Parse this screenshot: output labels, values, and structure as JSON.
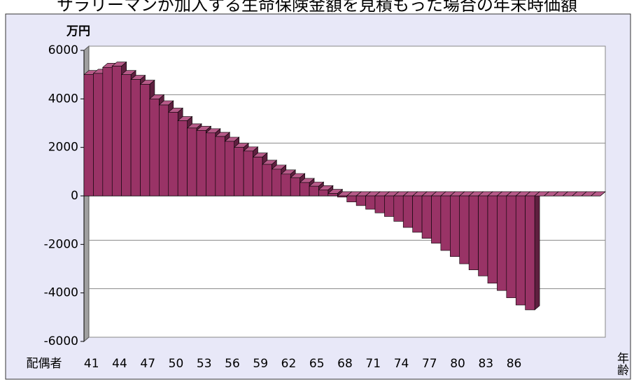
{
  "chart_data": {
    "type": "bar3d",
    "title": "サラリーマンが加入する生命保険金額を見積もった場合の年末時価額",
    "y_label": "万円",
    "x_label": "年齢",
    "x_prefix": "配偶者",
    "categories": [
      "41",
      null,
      null,
      "44",
      null,
      null,
      "47",
      null,
      null,
      "50",
      null,
      null,
      "53",
      null,
      null,
      "56",
      null,
      null,
      "59",
      null,
      null,
      "62",
      null,
      null,
      "65",
      null,
      null,
      "68",
      null,
      null,
      "71",
      null,
      null,
      "74",
      null,
      null,
      "77",
      null,
      null,
      "80",
      null,
      null,
      "83",
      null,
      null,
      "86",
      null,
      null,
      null,
      null,
      null,
      null,
      null,
      null,
      null
    ],
    "values": [
      5000,
      5050,
      5300,
      5350,
      5000,
      4800,
      4600,
      4000,
      3750,
      3450,
      3100,
      2800,
      2700,
      2600,
      2450,
      2250,
      2000,
      1850,
      1600,
      1300,
      1100,
      900,
      750,
      550,
      400,
      250,
      100,
      -50,
      -250,
      -400,
      -550,
      -700,
      -850,
      -1050,
      -1300,
      -1500,
      -1750,
      -1950,
      -2250,
      -2500,
      -2800,
      -3050,
      -3300,
      -3600,
      -3900,
      -4200,
      -4500,
      -4700,
      0,
      0,
      0,
      0,
      0,
      0,
      0
    ],
    "color": "#993366",
    "ylim": [
      -6000,
      6000
    ],
    "yticks": [
      -6000,
      -4000,
      -2000,
      0,
      2000,
      4000,
      6000
    ],
    "grid": true
  }
}
